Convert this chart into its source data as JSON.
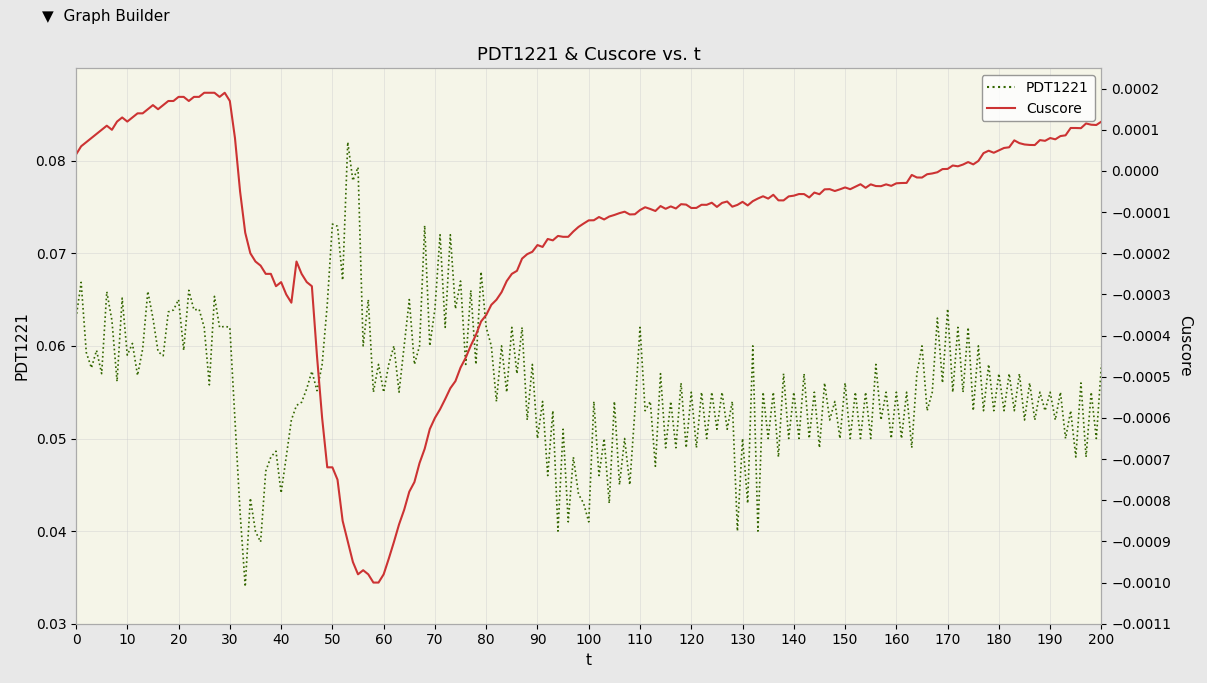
{
  "title": "PDT1221 & Cuscore vs. t",
  "xlabel": "t",
  "ylabel_left": "PDT1221",
  "ylabel_right": "Cuscore",
  "legend_labels": [
    "PDT1221",
    "Cuscore"
  ],
  "pdt_color": "#336600",
  "cuscore_color": "#cc3333",
  "pdt_linestyle": "dotted",
  "cuscore_linestyle": "solid",
  "xlim": [
    0,
    200
  ],
  "ylim_left": [
    0.03,
    0.09
  ],
  "ylim_right": [
    -0.0011,
    0.00025
  ],
  "yticks_left": [
    0.03,
    0.04,
    0.05,
    0.06,
    0.07,
    0.08
  ],
  "yticks_right": [
    -0.0011,
    -0.001,
    -0.0009,
    -0.0008,
    -0.0007,
    -0.0006,
    -0.0005,
    -0.0004,
    -0.0003,
    -0.0002,
    -0.0001,
    0,
    0.0001,
    0.0002
  ],
  "xticks": [
    0,
    10,
    20,
    30,
    40,
    50,
    60,
    70,
    80,
    90,
    100,
    110,
    120,
    130,
    140,
    150,
    160,
    170,
    180,
    190,
    200
  ],
  "background_color": "#f5f5e8",
  "title_fontsize": 13,
  "axis_fontsize": 11,
  "tick_fontsize": 10,
  "header_color": "#d0d0d0",
  "header_text": "Graph Builder"
}
